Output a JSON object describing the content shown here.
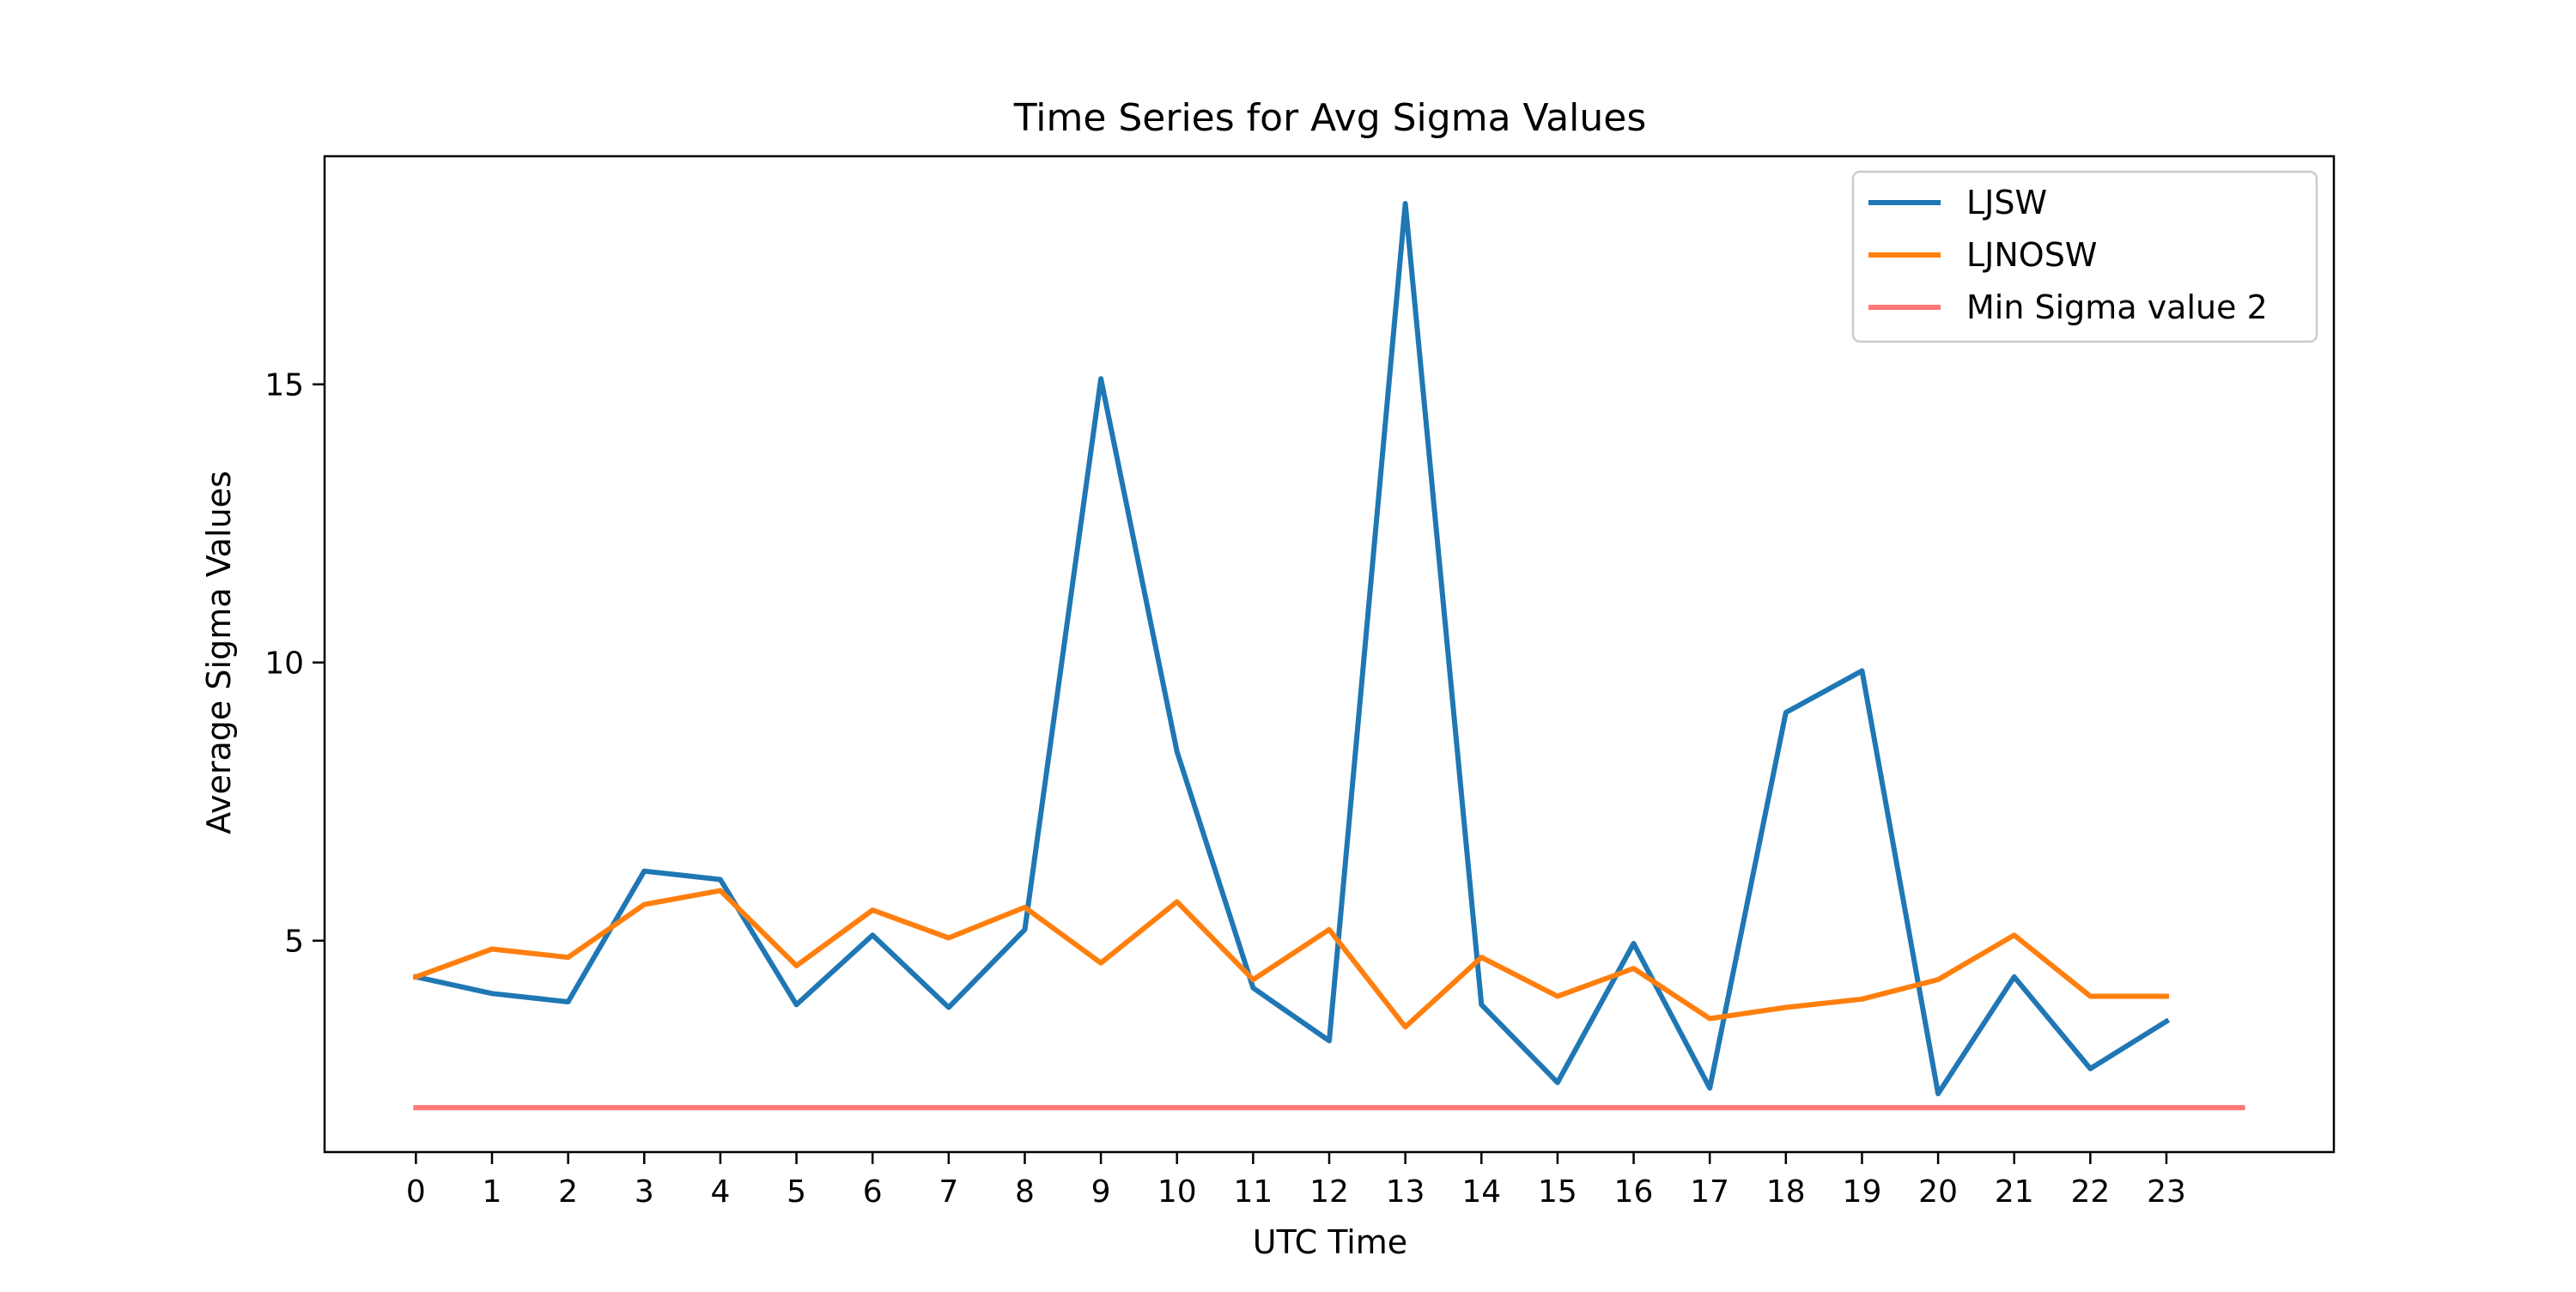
{
  "chart_data": {
    "type": "line",
    "title": "Time Series for Avg Sigma Values",
    "xlabel": "UTC Time",
    "ylabel": "Average Sigma Values",
    "x": [
      0,
      1,
      2,
      3,
      4,
      5,
      6,
      7,
      8,
      9,
      10,
      11,
      12,
      13,
      14,
      15,
      16,
      17,
      18,
      19,
      20,
      21,
      22,
      23
    ],
    "xticks": [
      "0",
      "1",
      "2",
      "3",
      "4",
      "5",
      "6",
      "7",
      "8",
      "9",
      "10",
      "11",
      "12",
      "13",
      "14",
      "15",
      "16",
      "17",
      "18",
      "19",
      "20",
      "21",
      "22",
      "23"
    ],
    "yticks": [
      "5",
      "10",
      "15"
    ],
    "ytick_values": [
      5,
      10,
      15
    ],
    "xlim": [
      -1.2,
      25.2
    ],
    "ylim": [
      1.2,
      19.1
    ],
    "grid": false,
    "legend_position": "top-right",
    "series": [
      {
        "name": "LJSW",
        "color": "#1f77b4",
        "x": [
          0,
          1,
          2,
          3,
          4,
          5,
          6,
          7,
          8,
          9,
          10,
          11,
          12,
          13,
          14,
          15,
          16,
          17,
          18,
          19,
          20,
          21,
          22,
          23
        ],
        "values": [
          4.35,
          4.05,
          3.9,
          6.25,
          6.1,
          3.85,
          5.1,
          3.8,
          5.2,
          15.1,
          8.4,
          4.15,
          3.2,
          18.25,
          3.85,
          2.45,
          4.95,
          2.35,
          9.1,
          9.85,
          2.25,
          4.35,
          2.7,
          3.55
        ]
      },
      {
        "name": "LJNOSW",
        "color": "#ff7f0e",
        "x": [
          0,
          1,
          2,
          3,
          4,
          5,
          6,
          7,
          8,
          9,
          10,
          11,
          12,
          13,
          14,
          15,
          16,
          17,
          18,
          19,
          20,
          21,
          22,
          23
        ],
        "values": [
          4.35,
          4.85,
          4.7,
          5.65,
          5.9,
          4.55,
          5.55,
          5.05,
          5.6,
          4.6,
          5.7,
          4.3,
          5.2,
          3.45,
          4.7,
          4.0,
          4.5,
          3.6,
          3.8,
          3.95,
          4.3,
          5.1,
          4.0,
          4.0
        ]
      },
      {
        "name": "Min Sigma value 2",
        "color": "#ff7777",
        "x": [
          0,
          24
        ],
        "values": [
          2,
          2
        ]
      }
    ]
  }
}
